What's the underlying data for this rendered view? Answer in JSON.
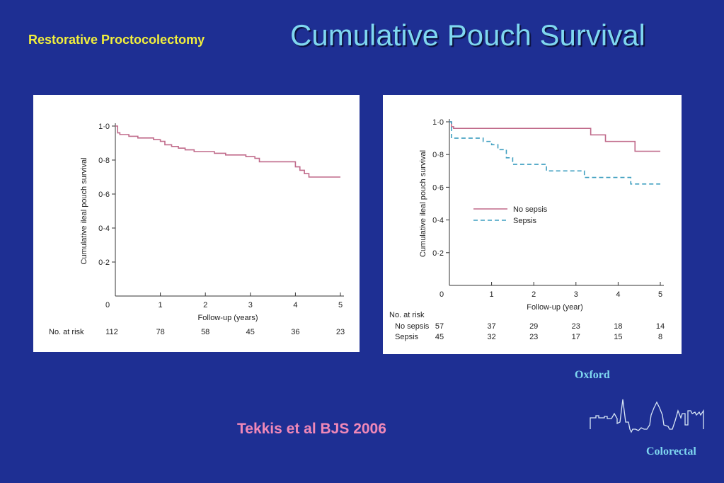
{
  "header": {
    "subtitle": "Restorative Proctocolectomy",
    "title": "Cumulative Pouch Survival"
  },
  "citation": "Tekkis et al BJS 2006",
  "branding": {
    "top_text": "Oxford",
    "bottom_text": "Colorectal",
    "logo_icon": "oxford-skyline-icon"
  },
  "colors": {
    "background": "#1e2f93",
    "title": "#7fd7f0",
    "subtitle": "#f2ef3c",
    "citation": "#f088b8",
    "survival_line": "#c06a8a",
    "sepsis_line": "#3f9fc0"
  },
  "chart_data": [
    {
      "type": "line",
      "title": "",
      "xlabel": "Follow-up (years)",
      "ylabel": "Cumulative ileal pouch survival",
      "xlim": [
        0,
        5
      ],
      "ylim": [
        0,
        1
      ],
      "xticks": [
        "0",
        "1",
        "2",
        "3",
        "4",
        "5"
      ],
      "yticks": [
        "0·2",
        "0·4",
        "0·6",
        "0·8",
        "1·0"
      ],
      "series": [
        {
          "x": [
            0,
            0.05,
            0.1,
            0.3,
            0.5,
            0.85,
            1.0,
            1.1,
            1.25,
            1.4,
            1.55,
            1.75,
            2.2,
            2.45,
            2.9,
            3.1,
            3.2,
            4.0,
            4.1,
            4.2,
            4.3,
            5.0
          ],
          "y": [
            1.0,
            0.96,
            0.95,
            0.94,
            0.93,
            0.92,
            0.91,
            0.89,
            0.88,
            0.87,
            0.86,
            0.85,
            0.84,
            0.83,
            0.82,
            0.81,
            0.79,
            0.76,
            0.74,
            0.72,
            0.7,
            0.7
          ]
        }
      ],
      "risk_table": {
        "label": "No. at risk",
        "rows": [
          {
            "name": "",
            "values": [
              "112",
              "78",
              "58",
              "45",
              "36",
              "23"
            ]
          }
        ]
      }
    },
    {
      "type": "line",
      "title": "",
      "xlabel": "Follow-up (year)",
      "ylabel": "Cumulative ileal pouch survival",
      "xlim": [
        0,
        5
      ],
      "ylim": [
        0,
        1
      ],
      "xticks": [
        "0",
        "1",
        "2",
        "3",
        "4",
        "5"
      ],
      "yticks": [
        "0·2",
        "0·4",
        "0·6",
        "0·8",
        "1·0"
      ],
      "legend": "center-left",
      "series": [
        {
          "name": "No sepsis",
          "style": "solid",
          "x": [
            0,
            0.05,
            0.1,
            3.0,
            3.35,
            3.7,
            4.4,
            5.0
          ],
          "y": [
            1.0,
            0.97,
            0.96,
            0.96,
            0.92,
            0.88,
            0.82,
            0.82
          ]
        },
        {
          "name": "Sepsis",
          "style": "dashed",
          "x": [
            0,
            0.05,
            0.8,
            1.0,
            1.15,
            1.35,
            1.5,
            2.3,
            3.2,
            4.3,
            5.0
          ],
          "y": [
            1.0,
            0.9,
            0.88,
            0.86,
            0.83,
            0.78,
            0.74,
            0.7,
            0.66,
            0.62,
            0.62
          ]
        }
      ],
      "risk_table": {
        "label": "No. at risk",
        "rows": [
          {
            "name": "No sepsis",
            "values": [
              "57",
              "37",
              "29",
              "23",
              "18",
              "14"
            ]
          },
          {
            "name": "Sepsis",
            "values": [
              "45",
              "32",
              "23",
              "17",
              "15",
              "8"
            ]
          }
        ]
      }
    }
  ]
}
